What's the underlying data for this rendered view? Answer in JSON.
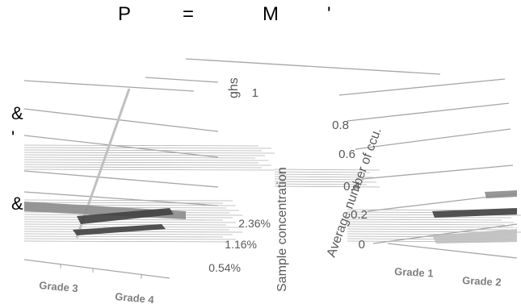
{
  "header": {
    "items": [
      {
        "text": "P"
      },
      {
        "text": "="
      },
      {
        "text": "M"
      },
      {
        "text": "'"
      }
    ]
  },
  "side_marks": [
    {
      "text": "&"
    },
    {
      "text": "'"
    },
    {
      "text": "&"
    }
  ],
  "chart_data": {
    "type": "bar",
    "projection": "3d",
    "title": "",
    "axis_titles": {
      "z_axis": "Sample concentration",
      "y_axis": "Average number of ccu.",
      "top_fragment": "ghs"
    },
    "y_ticks": [
      "0",
      "0.2",
      "0.4",
      "0.6",
      "0.8",
      "1"
    ],
    "ylim": [
      0,
      1
    ],
    "concentration_ticks": [
      "2.36%",
      "1.16%",
      "0.54%"
    ],
    "categories": [
      "Grade 1",
      "Grade 2",
      "Grade 3",
      "Grade 4"
    ],
    "grid": true,
    "legend": "none"
  },
  "colors": {
    "gridline": "#a6a6a6",
    "axis_text": "#595959",
    "bar_dark": "#404040",
    "bar_mid": "#8c8c8c",
    "bar_light": "#bfbfbf"
  }
}
